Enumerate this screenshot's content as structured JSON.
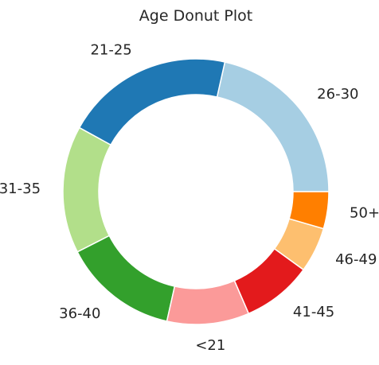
{
  "chart_data": {
    "type": "pie",
    "subtype": "donut",
    "title": "Age Donut Plot",
    "start_angle_deg": 0,
    "direction": "counterclockwise",
    "slices": [
      {
        "label": "26-30",
        "value": 21.5,
        "color": "#a6cee3"
      },
      {
        "label": "21-25",
        "value": 20.5,
        "color": "#1f78b4"
      },
      {
        "label": "31-35",
        "value": 15.5,
        "color": "#b2df8a"
      },
      {
        "label": "36-40",
        "value": 14.0,
        "color": "#33a02c"
      },
      {
        "label": "<21",
        "value": 10.0,
        "color": "#fb9a99"
      },
      {
        "label": "41-45",
        "value": 8.5,
        "color": "#e31a1c"
      },
      {
        "label": "46-49",
        "value": 5.5,
        "color": "#fdbf6f"
      },
      {
        "label": "50+",
        "value": 4.5,
        "color": "#ff7f00"
      }
    ]
  }
}
